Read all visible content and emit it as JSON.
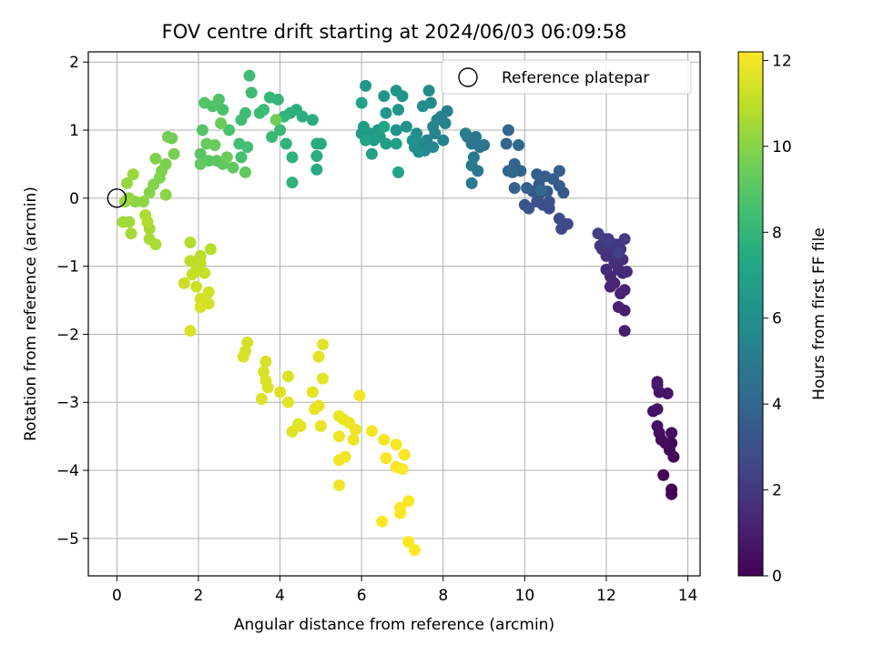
{
  "chart_data": {
    "type": "scatter",
    "title": "FOV centre drift starting at 2024/06/03 06:09:58",
    "xlabel": "Angular distance from reference (arcmin)",
    "ylabel": "Rotation from reference (arcmin)",
    "colorbar_label": "Hours from first FF file",
    "xlim": [
      -0.7,
      14.3
    ],
    "ylim": [
      -5.55,
      2.15
    ],
    "xticks": [
      0,
      2,
      4,
      6,
      8,
      10,
      12,
      14
    ],
    "yticks": [
      -5,
      -4,
      -3,
      -2,
      -1,
      0,
      1,
      2
    ],
    "colorbar_range": [
      0,
      12.2
    ],
    "colorbar_ticks": [
      0,
      2,
      4,
      6,
      8,
      10,
      12
    ],
    "colormap": "viridis",
    "grid": true,
    "legend": {
      "location": "top-right",
      "entries": [
        {
          "label": "Reference platepar",
          "marker": "open-circle"
        }
      ]
    },
    "reference_point": {
      "x": 0,
      "y": 0
    },
    "points": [
      {
        "x": 13.6,
        "y": -4.35,
        "h": 0.0
      },
      {
        "x": 13.6,
        "y": -4.28,
        "h": 0.05
      },
      {
        "x": 13.4,
        "y": -4.07,
        "h": 0.1
      },
      {
        "x": 13.65,
        "y": -3.8,
        "h": 0.15
      },
      {
        "x": 13.55,
        "y": -3.7,
        "h": 0.2
      },
      {
        "x": 13.6,
        "y": -3.6,
        "h": 0.25
      },
      {
        "x": 13.45,
        "y": -3.6,
        "h": 0.3
      },
      {
        "x": 13.35,
        "y": -3.55,
        "h": 0.35
      },
      {
        "x": 13.3,
        "y": -3.45,
        "h": 0.4
      },
      {
        "x": 13.6,
        "y": -3.45,
        "h": 0.45
      },
      {
        "x": 13.25,
        "y": -3.35,
        "h": 0.5
      },
      {
        "x": 13.15,
        "y": -3.13,
        "h": 0.55
      },
      {
        "x": 13.25,
        "y": -3.1,
        "h": 0.6
      },
      {
        "x": 13.3,
        "y": -2.85,
        "h": 0.65
      },
      {
        "x": 13.5,
        "y": -2.87,
        "h": 0.7
      },
      {
        "x": 13.25,
        "y": -2.7,
        "h": 0.75
      },
      {
        "x": 13.25,
        "y": -2.75,
        "h": 0.8
      },
      {
        "x": 12.45,
        "y": -1.95,
        "h": 1.0
      },
      {
        "x": 12.45,
        "y": -1.65,
        "h": 1.05
      },
      {
        "x": 12.3,
        "y": -1.6,
        "h": 1.1
      },
      {
        "x": 12.35,
        "y": -1.4,
        "h": 1.15
      },
      {
        "x": 12.45,
        "y": -1.35,
        "h": 1.2
      },
      {
        "x": 12.1,
        "y": -1.3,
        "h": 1.25
      },
      {
        "x": 12.2,
        "y": -1.25,
        "h": 1.3
      },
      {
        "x": 12.4,
        "y": -1.1,
        "h": 1.35
      },
      {
        "x": 12.1,
        "y": -1.15,
        "h": 1.4
      },
      {
        "x": 12.3,
        "y": -1.05,
        "h": 1.45
      },
      {
        "x": 12.0,
        "y": -1.05,
        "h": 1.5
      },
      {
        "x": 12.5,
        "y": -1.08,
        "h": 1.55
      },
      {
        "x": 12.2,
        "y": -0.95,
        "h": 1.6
      },
      {
        "x": 12.4,
        "y": -0.9,
        "h": 1.65
      },
      {
        "x": 12.0,
        "y": -0.85,
        "h": 1.7
      },
      {
        "x": 12.2,
        "y": -0.8,
        "h": 1.75
      },
      {
        "x": 12.35,
        "y": -0.75,
        "h": 1.8
      },
      {
        "x": 11.9,
        "y": -0.75,
        "h": 1.85
      },
      {
        "x": 12.05,
        "y": -0.7,
        "h": 1.9
      },
      {
        "x": 12.25,
        "y": -0.68,
        "h": 1.95
      },
      {
        "x": 11.85,
        "y": -0.7,
        "h": 2.0
      },
      {
        "x": 12.1,
        "y": -0.65,
        "h": 2.05
      },
      {
        "x": 11.95,
        "y": -0.6,
        "h": 2.1
      },
      {
        "x": 12.45,
        "y": -0.6,
        "h": 2.15
      },
      {
        "x": 12.05,
        "y": -0.6,
        "h": 2.2
      },
      {
        "x": 11.8,
        "y": -0.52,
        "h": 2.25
      },
      {
        "x": 12.3,
        "y": -0.8,
        "h": 2.3
      },
      {
        "x": 11.05,
        "y": -0.38,
        "h": 2.6
      },
      {
        "x": 10.9,
        "y": -0.45,
        "h": 2.7
      },
      {
        "x": 10.85,
        "y": -0.3,
        "h": 2.8
      },
      {
        "x": 10.6,
        "y": -0.15,
        "h": 2.9
      },
      {
        "x": 10.45,
        "y": -0.1,
        "h": 3.0
      },
      {
        "x": 10.3,
        "y": -0.05,
        "h": 3.05
      },
      {
        "x": 10.6,
        "y": -0.05,
        "h": 3.1
      },
      {
        "x": 10.35,
        "y": 0.05,
        "h": 3.15
      },
      {
        "x": 10.1,
        "y": -0.15,
        "h": 3.2
      },
      {
        "x": 10.0,
        "y": -0.1,
        "h": 3.25
      },
      {
        "x": 10.55,
        "y": 0.1,
        "h": 3.3
      },
      {
        "x": 10.2,
        "y": 0.1,
        "h": 3.35
      },
      {
        "x": 10.95,
        "y": 0.08,
        "h": 3.4
      },
      {
        "x": 10.85,
        "y": 0.18,
        "h": 3.45
      },
      {
        "x": 10.35,
        "y": 0.2,
        "h": 3.5
      },
      {
        "x": 10.7,
        "y": 0.28,
        "h": 3.55
      },
      {
        "x": 10.5,
        "y": 0.32,
        "h": 3.6
      },
      {
        "x": 10.3,
        "y": 0.35,
        "h": 3.65
      },
      {
        "x": 10.85,
        "y": 0.4,
        "h": 3.7
      },
      {
        "x": 10.05,
        "y": 0.15,
        "h": 3.75
      },
      {
        "x": 9.75,
        "y": 0.15,
        "h": 3.8
      },
      {
        "x": 9.9,
        "y": 0.4,
        "h": 3.85
      },
      {
        "x": 9.6,
        "y": 0.4,
        "h": 3.9
      },
      {
        "x": 9.75,
        "y": 0.5,
        "h": 3.95
      },
      {
        "x": 9.55,
        "y": 0.8,
        "h": 4.0
      },
      {
        "x": 9.6,
        "y": 1.0,
        "h": 4.05
      },
      {
        "x": 9.85,
        "y": 0.78,
        "h": 4.1
      },
      {
        "x": 9.7,
        "y": 0.38,
        "h": 4.15
      },
      {
        "x": 10.4,
        "y": 0.12,
        "h": 4.2
      },
      {
        "x": 9.0,
        "y": 0.78,
        "h": 4.6
      },
      {
        "x": 8.7,
        "y": 0.8,
        "h": 4.7
      },
      {
        "x": 8.9,
        "y": 0.75,
        "h": 4.75
      },
      {
        "x": 8.6,
        "y": 0.9,
        "h": 4.8
      },
      {
        "x": 8.8,
        "y": 0.9,
        "h": 4.85
      },
      {
        "x": 8.7,
        "y": 0.48,
        "h": 4.9
      },
      {
        "x": 8.85,
        "y": 0.4,
        "h": 4.95
      },
      {
        "x": 8.75,
        "y": 0.6,
        "h": 5.0
      },
      {
        "x": 8.7,
        "y": 0.22,
        "h": 5.05
      },
      {
        "x": 8.55,
        "y": 0.95,
        "h": 5.1
      },
      {
        "x": 8.1,
        "y": 1.28,
        "h": 5.2
      },
      {
        "x": 7.95,
        "y": 1.2,
        "h": 5.3
      },
      {
        "x": 7.85,
        "y": 1.15,
        "h": 5.35
      },
      {
        "x": 8.05,
        "y": 1.1,
        "h": 5.4
      },
      {
        "x": 7.75,
        "y": 1.05,
        "h": 5.45
      },
      {
        "x": 7.8,
        "y": 0.95,
        "h": 5.5
      },
      {
        "x": 8.0,
        "y": 0.85,
        "h": 5.55
      },
      {
        "x": 7.6,
        "y": 0.85,
        "h": 5.6
      },
      {
        "x": 7.45,
        "y": 0.8,
        "h": 5.65
      },
      {
        "x": 7.75,
        "y": 0.75,
        "h": 5.7
      },
      {
        "x": 7.55,
        "y": 0.7,
        "h": 5.75
      },
      {
        "x": 7.7,
        "y": 1.4,
        "h": 5.8
      },
      {
        "x": 7.65,
        "y": 1.58,
        "h": 5.85
      },
      {
        "x": 7.5,
        "y": 1.35,
        "h": 5.9
      },
      {
        "x": 7.35,
        "y": 0.95,
        "h": 5.95
      },
      {
        "x": 7.3,
        "y": 0.75,
        "h": 6.0
      },
      {
        "x": 7.4,
        "y": 0.68,
        "h": 6.05
      },
      {
        "x": 7.25,
        "y": 0.85,
        "h": 6.1
      },
      {
        "x": 7.1,
        "y": 1.05,
        "h": 6.15
      },
      {
        "x": 6.85,
        "y": 1.0,
        "h": 6.2
      },
      {
        "x": 6.9,
        "y": 1.3,
        "h": 6.25
      },
      {
        "x": 7.0,
        "y": 1.5,
        "h": 6.3
      },
      {
        "x": 6.85,
        "y": 1.58,
        "h": 6.35
      },
      {
        "x": 6.55,
        "y": 1.5,
        "h": 6.4
      },
      {
        "x": 6.1,
        "y": 1.65,
        "h": 6.45
      },
      {
        "x": 6.6,
        "y": 1.25,
        "h": 6.5
      },
      {
        "x": 6.4,
        "y": 1.0,
        "h": 6.55
      },
      {
        "x": 6.2,
        "y": 0.95,
        "h": 6.6
      },
      {
        "x": 6.0,
        "y": 0.95,
        "h": 6.65
      },
      {
        "x": 6.05,
        "y": 1.05,
        "h": 6.7
      },
      {
        "x": 6.3,
        "y": 0.85,
        "h": 6.75
      },
      {
        "x": 6.45,
        "y": 0.9,
        "h": 6.8
      },
      {
        "x": 6.6,
        "y": 0.8,
        "h": 6.85
      },
      {
        "x": 6.85,
        "y": 0.8,
        "h": 6.9
      },
      {
        "x": 6.25,
        "y": 0.65,
        "h": 6.95
      },
      {
        "x": 6.9,
        "y": 0.38,
        "h": 7.0
      },
      {
        "x": 6.0,
        "y": 1.4,
        "h": 7.05
      },
      {
        "x": 6.1,
        "y": 0.85,
        "h": 7.1
      },
      {
        "x": 6.55,
        "y": 1.05,
        "h": 7.15
      },
      {
        "x": 5.0,
        "y": 0.8,
        "h": 7.4
      },
      {
        "x": 4.9,
        "y": 0.42,
        "h": 7.45
      },
      {
        "x": 4.9,
        "y": 0.8,
        "h": 7.5
      },
      {
        "x": 4.8,
        "y": 1.15,
        "h": 7.55
      },
      {
        "x": 4.9,
        "y": 0.62,
        "h": 7.6
      },
      {
        "x": 4.55,
        "y": 1.2,
        "h": 7.65
      },
      {
        "x": 4.25,
        "y": 1.25,
        "h": 7.7
      },
      {
        "x": 4.4,
        "y": 1.3,
        "h": 7.75
      },
      {
        "x": 4.3,
        "y": 0.6,
        "h": 7.8
      },
      {
        "x": 4.3,
        "y": 0.23,
        "h": 7.85
      },
      {
        "x": 4.15,
        "y": 0.8,
        "h": 7.9
      },
      {
        "x": 4.1,
        "y": 1.2,
        "h": 7.95
      },
      {
        "x": 3.95,
        "y": 1.45,
        "h": 8.0
      },
      {
        "x": 3.75,
        "y": 1.48,
        "h": 8.05
      },
      {
        "x": 4.0,
        "y": 1.0,
        "h": 8.1
      },
      {
        "x": 3.8,
        "y": 0.9,
        "h": 8.15
      },
      {
        "x": 3.6,
        "y": 1.3,
        "h": 8.2
      },
      {
        "x": 3.5,
        "y": 1.25,
        "h": 8.25
      },
      {
        "x": 3.3,
        "y": 1.55,
        "h": 8.3
      },
      {
        "x": 3.25,
        "y": 1.8,
        "h": 8.35
      },
      {
        "x": 3.15,
        "y": 1.25,
        "h": 8.4
      },
      {
        "x": 3.05,
        "y": 1.15,
        "h": 8.45
      },
      {
        "x": 3.0,
        "y": 0.8,
        "h": 8.5
      },
      {
        "x": 3.2,
        "y": 0.75,
        "h": 8.55
      },
      {
        "x": 3.05,
        "y": 0.6,
        "h": 8.6
      },
      {
        "x": 2.75,
        "y": 1.0,
        "h": 8.65
      },
      {
        "x": 2.6,
        "y": 1.3,
        "h": 8.7
      },
      {
        "x": 2.5,
        "y": 1.45,
        "h": 8.75
      },
      {
        "x": 2.35,
        "y": 1.35,
        "h": 8.8
      },
      {
        "x": 2.15,
        "y": 1.4,
        "h": 8.85
      },
      {
        "x": 2.1,
        "y": 1.0,
        "h": 8.9
      },
      {
        "x": 2.05,
        "y": 0.65,
        "h": 8.95
      },
      {
        "x": 2.25,
        "y": 0.55,
        "h": 9.0
      },
      {
        "x": 2.45,
        "y": 0.55,
        "h": 9.05
      },
      {
        "x": 2.6,
        "y": 0.5,
        "h": 9.1
      },
      {
        "x": 2.85,
        "y": 0.45,
        "h": 9.15
      },
      {
        "x": 3.15,
        "y": 0.38,
        "h": 9.2
      },
      {
        "x": 2.05,
        "y": 0.5,
        "h": 9.25
      },
      {
        "x": 2.2,
        "y": 0.8,
        "h": 9.3
      },
      {
        "x": 2.4,
        "y": 0.78,
        "h": 9.35
      },
      {
        "x": 2.55,
        "y": 1.1,
        "h": 9.4
      },
      {
        "x": 2.7,
        "y": 0.6,
        "h": 9.45
      },
      {
        "x": 3.9,
        "y": 1.15,
        "h": 9.5
      },
      {
        "x": 1.35,
        "y": 0.88,
        "h": 9.6
      },
      {
        "x": 1.25,
        "y": 0.9,
        "h": 9.65
      },
      {
        "x": 1.4,
        "y": 0.65,
        "h": 9.7
      },
      {
        "x": 1.2,
        "y": 0.5,
        "h": 9.75
      },
      {
        "x": 1.1,
        "y": 0.4,
        "h": 9.8
      },
      {
        "x": 0.95,
        "y": 0.58,
        "h": 9.85
      },
      {
        "x": 1.05,
        "y": 0.3,
        "h": 9.9
      },
      {
        "x": 0.9,
        "y": 0.2,
        "h": 9.95
      },
      {
        "x": 0.8,
        "y": 0.08,
        "h": 10.0
      },
      {
        "x": 1.2,
        "y": 0.05,
        "h": 10.05
      },
      {
        "x": 0.65,
        "y": -0.05,
        "h": 10.1
      },
      {
        "x": 0.45,
        "y": -0.05,
        "h": 10.15
      },
      {
        "x": 0.3,
        "y": 0.0,
        "h": 10.2
      },
      {
        "x": 0.25,
        "y": 0.22,
        "h": 10.25
      },
      {
        "x": 0.4,
        "y": 0.35,
        "h": 10.3
      },
      {
        "x": 0.2,
        "y": -0.05,
        "h": 10.35
      },
      {
        "x": 0.3,
        "y": -0.35,
        "h": 10.4
      },
      {
        "x": 0.15,
        "y": -0.35,
        "h": 10.45
      },
      {
        "x": 0.35,
        "y": -0.52,
        "h": 10.5
      },
      {
        "x": 0.8,
        "y": -0.45,
        "h": 10.55
      },
      {
        "x": 0.8,
        "y": -0.6,
        "h": 10.6
      },
      {
        "x": 0.95,
        "y": -0.68,
        "h": 10.65
      },
      {
        "x": 0.7,
        "y": -0.25,
        "h": 10.7
      },
      {
        "x": 0.75,
        "y": -0.35,
        "h": 10.75
      },
      {
        "x": 1.8,
        "y": -0.65,
        "h": 10.8
      },
      {
        "x": 2.3,
        "y": -0.75,
        "h": 10.85
      },
      {
        "x": 2.05,
        "y": -0.85,
        "h": 10.9
      },
      {
        "x": 1.8,
        "y": -0.92,
        "h": 10.95
      },
      {
        "x": 2.05,
        "y": -0.95,
        "h": 11.0
      },
      {
        "x": 1.95,
        "y": -1.05,
        "h": 11.05
      },
      {
        "x": 2.15,
        "y": -1.1,
        "h": 11.1
      },
      {
        "x": 1.85,
        "y": -1.12,
        "h": 11.15
      },
      {
        "x": 1.65,
        "y": -1.25,
        "h": 11.2
      },
      {
        "x": 1.95,
        "y": -1.3,
        "h": 11.25
      },
      {
        "x": 2.25,
        "y": -1.38,
        "h": 11.3
      },
      {
        "x": 2.05,
        "y": -1.48,
        "h": 11.35
      },
      {
        "x": 2.25,
        "y": -1.55,
        "h": 11.4
      },
      {
        "x": 2.05,
        "y": -1.6,
        "h": 11.45
      },
      {
        "x": 1.8,
        "y": -1.95,
        "h": 11.5
      },
      {
        "x": 3.2,
        "y": -2.12,
        "h": 11.4
      },
      {
        "x": 3.15,
        "y": -2.25,
        "h": 11.42
      },
      {
        "x": 3.1,
        "y": -2.33,
        "h": 11.44
      },
      {
        "x": 3.65,
        "y": -2.4,
        "h": 11.46
      },
      {
        "x": 3.6,
        "y": -2.55,
        "h": 11.48
      },
      {
        "x": 3.65,
        "y": -2.68,
        "h": 11.5
      },
      {
        "x": 3.7,
        "y": -2.78,
        "h": 11.52
      },
      {
        "x": 3.55,
        "y": -2.95,
        "h": 11.54
      },
      {
        "x": 4.0,
        "y": -2.85,
        "h": 11.56
      },
      {
        "x": 4.2,
        "y": -2.62,
        "h": 11.58
      },
      {
        "x": 4.2,
        "y": -3.0,
        "h": 11.6
      },
      {
        "x": 4.45,
        "y": -3.32,
        "h": 11.62
      },
      {
        "x": 4.3,
        "y": -3.43,
        "h": 11.64
      },
      {
        "x": 4.5,
        "y": -3.35,
        "h": 11.66
      },
      {
        "x": 4.95,
        "y": -2.33,
        "h": 11.68
      },
      {
        "x": 5.05,
        "y": -2.15,
        "h": 11.7
      },
      {
        "x": 5.05,
        "y": -2.65,
        "h": 11.72
      },
      {
        "x": 4.8,
        "y": -2.85,
        "h": 11.74
      },
      {
        "x": 4.95,
        "y": -3.05,
        "h": 11.76
      },
      {
        "x": 4.85,
        "y": -3.1,
        "h": 11.78
      },
      {
        "x": 5.0,
        "y": -3.35,
        "h": 11.8
      },
      {
        "x": 5.45,
        "y": -3.2,
        "h": 11.82
      },
      {
        "x": 5.55,
        "y": -3.25,
        "h": 11.84
      },
      {
        "x": 5.7,
        "y": -3.3,
        "h": 11.86
      },
      {
        "x": 5.85,
        "y": -3.4,
        "h": 11.88
      },
      {
        "x": 5.45,
        "y": -3.5,
        "h": 11.9
      },
      {
        "x": 5.8,
        "y": -3.55,
        "h": 11.92
      },
      {
        "x": 5.6,
        "y": -3.8,
        "h": 11.94
      },
      {
        "x": 5.45,
        "y": -3.85,
        "h": 11.96
      },
      {
        "x": 5.45,
        "y": -4.22,
        "h": 11.98
      },
      {
        "x": 5.95,
        "y": -2.9,
        "h": 12.0
      },
      {
        "x": 6.25,
        "y": -3.42,
        "h": 12.02
      },
      {
        "x": 6.55,
        "y": -3.55,
        "h": 12.04
      },
      {
        "x": 6.6,
        "y": -3.82,
        "h": 12.06
      },
      {
        "x": 6.85,
        "y": -3.62,
        "h": 12.08
      },
      {
        "x": 6.85,
        "y": -3.95,
        "h": 12.1
      },
      {
        "x": 7.05,
        "y": -3.77,
        "h": 12.12
      },
      {
        "x": 7.0,
        "y": -3.98,
        "h": 12.14
      },
      {
        "x": 6.95,
        "y": -4.55,
        "h": 12.16
      },
      {
        "x": 7.15,
        "y": -4.45,
        "h": 12.18
      },
      {
        "x": 6.95,
        "y": -4.63,
        "h": 12.2
      },
      {
        "x": 6.5,
        "y": -4.75,
        "h": 12.22
      },
      {
        "x": 7.15,
        "y": -5.05,
        "h": 12.24
      },
      {
        "x": 7.3,
        "y": -5.17,
        "h": 12.26
      }
    ]
  }
}
